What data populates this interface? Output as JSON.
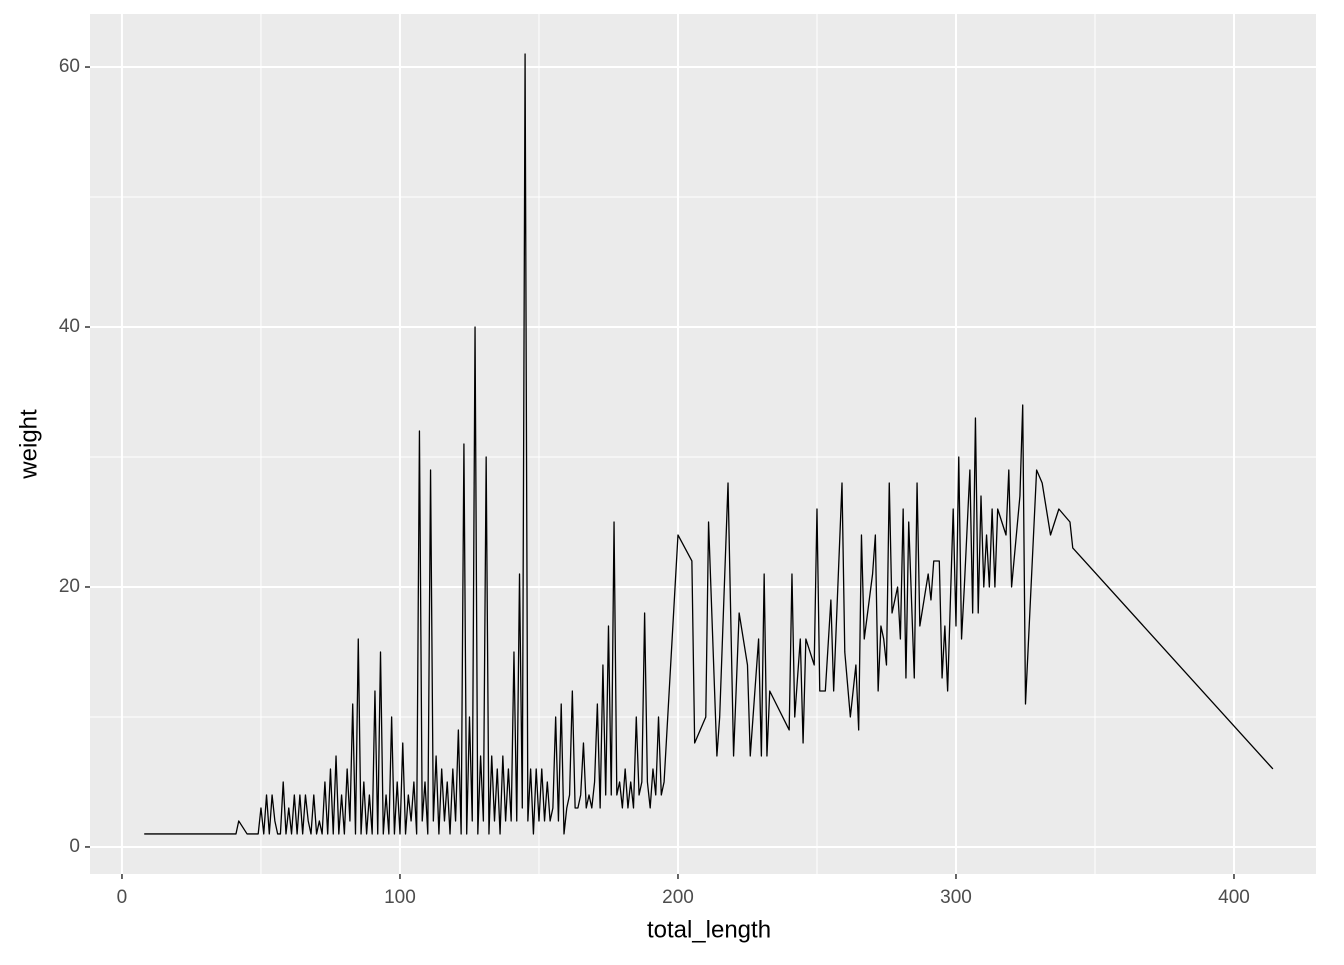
{
  "chart_data": {
    "type": "line",
    "x_label": "total_length",
    "y_label": "weight",
    "x": [
      8,
      41,
      42,
      45,
      49,
      50,
      51,
      52,
      53,
      54,
      55,
      56,
      57,
      58,
      59,
      60,
      61,
      62,
      63,
      64,
      65,
      66,
      67,
      68,
      69,
      70,
      71,
      72,
      73,
      74,
      75,
      76,
      77,
      78,
      79,
      80,
      81,
      82,
      83,
      84,
      85,
      86,
      87,
      88,
      89,
      90,
      91,
      92,
      93,
      94,
      95,
      96,
      97,
      98,
      99,
      100,
      101,
      102,
      103,
      104,
      105,
      106,
      107,
      108,
      109,
      110,
      111,
      112,
      113,
      114,
      115,
      116,
      117,
      118,
      119,
      120,
      121,
      122,
      123,
      124,
      125,
      126,
      127,
      128,
      129,
      130,
      131,
      132,
      133,
      134,
      135,
      136,
      137,
      138,
      139,
      140,
      141,
      142,
      143,
      144,
      145,
      146,
      147,
      148,
      149,
      150,
      151,
      152,
      153,
      154,
      155,
      156,
      157,
      158,
      159,
      160,
      161,
      162,
      163,
      164,
      165,
      166,
      167,
      168,
      169,
      170,
      171,
      172,
      173,
      174,
      175,
      176,
      177,
      178,
      179,
      180,
      181,
      182,
      183,
      184,
      185,
      186,
      187,
      188,
      189,
      190,
      191,
      192,
      193,
      194,
      195,
      200,
      205,
      206,
      210,
      211,
      214,
      215,
      218,
      220,
      222,
      225,
      226,
      229,
      230,
      231,
      232,
      233,
      240,
      241,
      242,
      244,
      245,
      246,
      249,
      250,
      251,
      253,
      255,
      256,
      259,
      260,
      262,
      264,
      265,
      266,
      267,
      270,
      271,
      272,
      273,
      274,
      275,
      276,
      277,
      279,
      280,
      281,
      282,
      283,
      285,
      286,
      287,
      290,
      291,
      292,
      294,
      295,
      296,
      297,
      299,
      300,
      301,
      302,
      303,
      305,
      306,
      307,
      308,
      309,
      310,
      311,
      312,
      313,
      314,
      315,
      318,
      319,
      320,
      323,
      324,
      325,
      329,
      331,
      334,
      337,
      341,
      342,
      414
    ],
    "series": [
      {
        "color": "#000000",
        "values": [
          1,
          1,
          2,
          1,
          1,
          3,
          1,
          4,
          1,
          4,
          2,
          1,
          1,
          5,
          1,
          3,
          1,
          4,
          1,
          4,
          1,
          4,
          2,
          1,
          4,
          1,
          2,
          1,
          5,
          1,
          6,
          1,
          7,
          1,
          4,
          1,
          6,
          2,
          11,
          1,
          16,
          1,
          5,
          1,
          4,
          1,
          12,
          1,
          15,
          1,
          4,
          1,
          10,
          1,
          5,
          1,
          8,
          1,
          4,
          2,
          5,
          1,
          32,
          2,
          5,
          1,
          29,
          2,
          7,
          1,
          6,
          2,
          5,
          1,
          6,
          2,
          9,
          1,
          31,
          1,
          10,
          2,
          40,
          1,
          7,
          2,
          30,
          1,
          7,
          2,
          6,
          1,
          7,
          2,
          6,
          2,
          15,
          2,
          21,
          3,
          61,
          2,
          6,
          1,
          6,
          2,
          6,
          2,
          5,
          2,
          3,
          10,
          2,
          11,
          1,
          3,
          4,
          12,
          3,
          3,
          4,
          8,
          3,
          4,
          3,
          5,
          11,
          3,
          14,
          4,
          17,
          4,
          25,
          4,
          5,
          3,
          6,
          3,
          5,
          3,
          10,
          4,
          5,
          18,
          5,
          3,
          6,
          4,
          10,
          4,
          5,
          24,
          22,
          8,
          10,
          25,
          7,
          10,
          28,
          7,
          18,
          14,
          7,
          16,
          7,
          21,
          7,
          12,
          9,
          21,
          10,
          16,
          8,
          16,
          14,
          26,
          12,
          12,
          19,
          12,
          28,
          15,
          10,
          14,
          9,
          24,
          16,
          21,
          24,
          12,
          17,
          16,
          14,
          28,
          18,
          20,
          16,
          26,
          13,
          25,
          13,
          28,
          17,
          21,
          19,
          22,
          22,
          13,
          17,
          12,
          26,
          17,
          30,
          16,
          20,
          29,
          18,
          33,
          18,
          27,
          20,
          24,
          20,
          26,
          20,
          26,
          24,
          29,
          20,
          27,
          34,
          11,
          29,
          28,
          24,
          26,
          25,
          23,
          6
        ]
      }
    ],
    "xlim": [
      -11.5,
      429.5
    ],
    "ylim": [
      -2.08,
      64.08
    ],
    "xticks": [
      0,
      100,
      200,
      300,
      400
    ],
    "yticks": [
      0,
      20,
      40,
      60
    ],
    "x_minor_breaks": [
      50,
      150,
      250,
      350
    ],
    "y_minor_breaks": [
      10,
      30,
      50
    ],
    "grid": true
  }
}
